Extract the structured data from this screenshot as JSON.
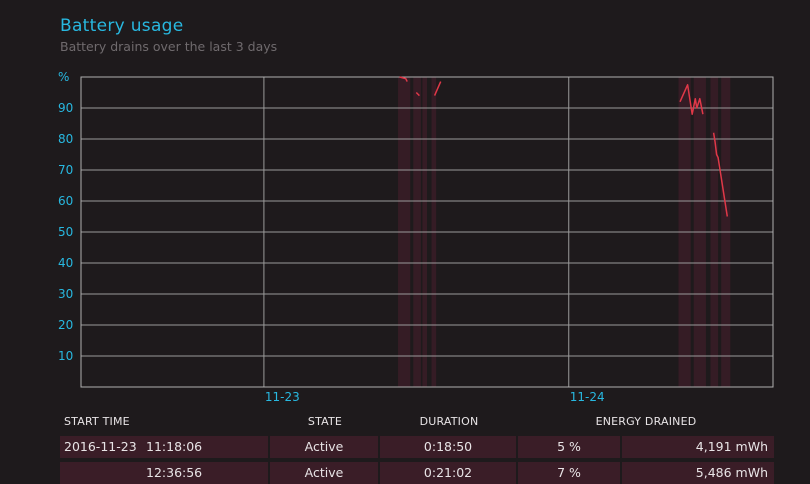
{
  "header": {
    "title": "Battery usage",
    "subtitle": "Battery drains over the last 3 days"
  },
  "chart_data": {
    "type": "line",
    "y_unit_label": "%",
    "ylim": [
      0,
      100
    ],
    "y_ticks": [
      90,
      80,
      70,
      60,
      50,
      40,
      30,
      20,
      10
    ],
    "x_tick_labels": [
      "11-23",
      "11-24"
    ],
    "grid": true,
    "x_domain": [
      -0.6,
      1.67
    ],
    "x_ticks_pos": [
      0,
      1
    ],
    "active_bands": [
      [
        0.44,
        0.48
      ],
      [
        0.49,
        0.515
      ],
      [
        0.52,
        0.535
      ],
      [
        0.55,
        0.565
      ],
      [
        1.36,
        1.4
      ],
      [
        1.41,
        1.45
      ],
      [
        1.465,
        1.49
      ],
      [
        1.5,
        1.53
      ]
    ],
    "series": [
      {
        "values": [
          {
            "x": [
              0.445,
              0.465,
              0.47
            ],
            "y": [
              100,
              99.5,
              98.5
            ]
          },
          {
            "x": [
              0.5,
              0.51
            ],
            "y": [
              95,
              94
            ]
          },
          {
            "x": [
              0.56,
              0.58
            ],
            "y": [
              94,
              98.5
            ]
          },
          {
            "x": [
              1.365,
              1.39,
              1.405,
              1.415,
              1.42,
              1.43,
              1.44
            ],
            "y": [
              92,
              97.5,
              88,
              93,
              90,
              93,
              88
            ]
          },
          {
            "x": [
              1.475,
              1.48,
              1.485,
              1.49,
              1.52
            ],
            "y": [
              82,
              79,
              75,
              74,
              55
            ]
          }
        ]
      }
    ]
  },
  "table": {
    "columns": [
      "START TIME",
      "STATE",
      "DURATION",
      "ENERGY DRAINED"
    ],
    "rows": [
      {
        "date": "2016-11-23",
        "time": "11:18:06",
        "state": "Active",
        "duration": "0:18:50",
        "percent": "5 %",
        "energy": "4,191 mWh"
      },
      {
        "date": "",
        "time": "12:36:56",
        "state": "Active",
        "duration": "0:21:02",
        "percent": "7 %",
        "energy": "5,486 mWh"
      }
    ]
  },
  "colors": {
    "accent": "#28b8e0",
    "drain_line": "#e03848",
    "active_band": "#3a1d27",
    "grid": "#9a9a9a"
  }
}
